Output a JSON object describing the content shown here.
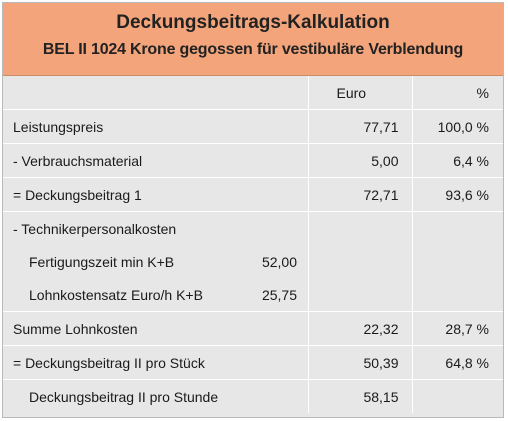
{
  "header": {
    "title": "Deckungsbeitrags-Kalkulation",
    "subtitle": "BEL II 1024 Krone gegossen für vestibuläre Verblendung"
  },
  "columns": {
    "euro": "Euro",
    "percent": "%"
  },
  "rows": {
    "leistungspreis": {
      "label": "Leistungspreis",
      "euro": "77,71",
      "percent": "100,0 %"
    },
    "verbrauchsmaterial": {
      "label": "- Verbrauchsmaterial",
      "euro": "5,00",
      "percent": "6,4 %"
    },
    "deckungsbeitrag1": {
      "label": "= Deckungsbeitrag 1",
      "euro": "72,71",
      "percent": "93,6 %"
    },
    "technikerpersonalkosten": {
      "label": "- Technikerpersonalkosten"
    },
    "fertigungszeit": {
      "label": "Fertigungszeit min K+B",
      "value": "52,00"
    },
    "lohnkostensatz": {
      "label": "Lohnkostensatz Euro/h K+B",
      "value": "25,75"
    },
    "summe_lohnkosten": {
      "label": "Summe Lohnkosten",
      "euro": "22,32",
      "percent": "28,7 %"
    },
    "deckungsbeitrag2_stueck": {
      "label": "= Deckungsbeitrag II pro Stück",
      "euro": "50,39",
      "percent": "64,8 %"
    },
    "deckungsbeitrag2_stunde": {
      "label": "Deckungsbeitrag II pro Stunde",
      "euro": "58,15"
    }
  },
  "colors": {
    "header_bg": "#f3a47a",
    "body_bg": "#e7e7e7",
    "grid": "#ffffff"
  }
}
